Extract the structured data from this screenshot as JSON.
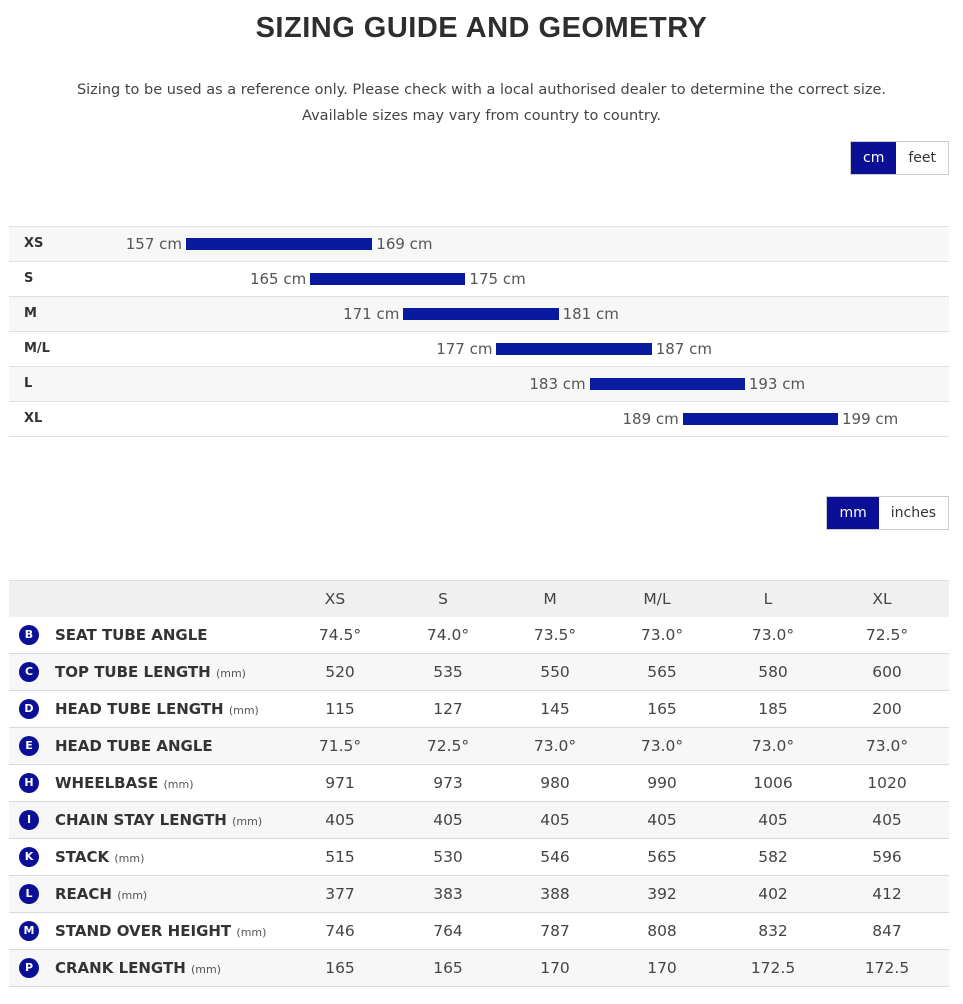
{
  "header": {
    "title": "SIZING GUIDE AND GEOMETRY",
    "note_lines": [
      "Sizing to be used as a reference only. Please check with a local authorised dealer to determine the correct size.",
      "Available sizes may vary from country to country."
    ]
  },
  "height_units": {
    "options": [
      "cm",
      "feet"
    ],
    "selected": 0
  },
  "sizing": [
    {
      "size": "XS",
      "min": 157,
      "max": 169,
      "min_label": "157 cm",
      "max_label": "169 cm"
    },
    {
      "size": "S",
      "min": 165,
      "max": 175,
      "min_label": "165 cm",
      "max_label": "175 cm"
    },
    {
      "size": "M",
      "min": 171,
      "max": 181,
      "min_label": "171 cm",
      "max_label": "181 cm"
    },
    {
      "size": "M/L",
      "min": 177,
      "max": 187,
      "min_label": "177 cm",
      "max_label": "187 cm"
    },
    {
      "size": "L",
      "min": 183,
      "max": 193,
      "min_label": "183 cm",
      "max_label": "193 cm"
    },
    {
      "size": "XL",
      "min": 189,
      "max": 199,
      "min_label": "189 cm",
      "max_label": "199 cm"
    }
  ],
  "length_units": {
    "options": [
      "mm",
      "inches"
    ],
    "selected": 0
  },
  "table": {
    "columns": [
      "XS",
      "S",
      "M",
      "M/L",
      "L",
      "XL"
    ],
    "rows": [
      {
        "letter": "B",
        "name": "SEAT TUBE ANGLE",
        "values": [
          "74.5°",
          "74.0°",
          "73.5°",
          "73.0°",
          "73.0°",
          "72.5°"
        ]
      },
      {
        "letter": "C",
        "name": "TOP TUBE LENGTH",
        "unit": "(mm)",
        "values": [
          "520",
          "535",
          "550",
          "565",
          "580",
          "600"
        ]
      },
      {
        "letter": "D",
        "name": "HEAD TUBE LENGTH",
        "unit": "(mm)",
        "values": [
          "115",
          "127",
          "145",
          "165",
          "185",
          "200"
        ]
      },
      {
        "letter": "E",
        "name": "HEAD TUBE ANGLE",
        "values": [
          "71.5°",
          "72.5°",
          "73.0°",
          "73.0°",
          "73.0°",
          "73.0°"
        ]
      },
      {
        "letter": "H",
        "name": "WHEELBASE",
        "unit": "(mm)",
        "values": [
          "971",
          "973",
          "980",
          "990",
          "1006",
          "1020"
        ]
      },
      {
        "letter": "I",
        "name": "CHAIN STAY LENGTH",
        "unit": "(mm)",
        "values": [
          "405",
          "405",
          "405",
          "405",
          "405",
          "405"
        ]
      },
      {
        "letter": "K",
        "name": "STACK",
        "unit": "(mm)",
        "values": [
          "515",
          "530",
          "546",
          "565",
          "582",
          "596"
        ]
      },
      {
        "letter": "L",
        "name": "REACH",
        "unit": "(mm)",
        "values": [
          "377",
          "383",
          "388",
          "392",
          "402",
          "412"
        ]
      },
      {
        "letter": "M",
        "name": "STAND OVER HEIGHT",
        "unit": "(mm)",
        "values": [
          "746",
          "764",
          "787",
          "808",
          "832",
          "847"
        ]
      },
      {
        "letter": "P",
        "name": "CRANK LENGTH",
        "unit": "(mm)",
        "values": [
          "165",
          "165",
          "170",
          "170",
          "172.5",
          "172.5"
        ]
      }
    ]
  }
}
